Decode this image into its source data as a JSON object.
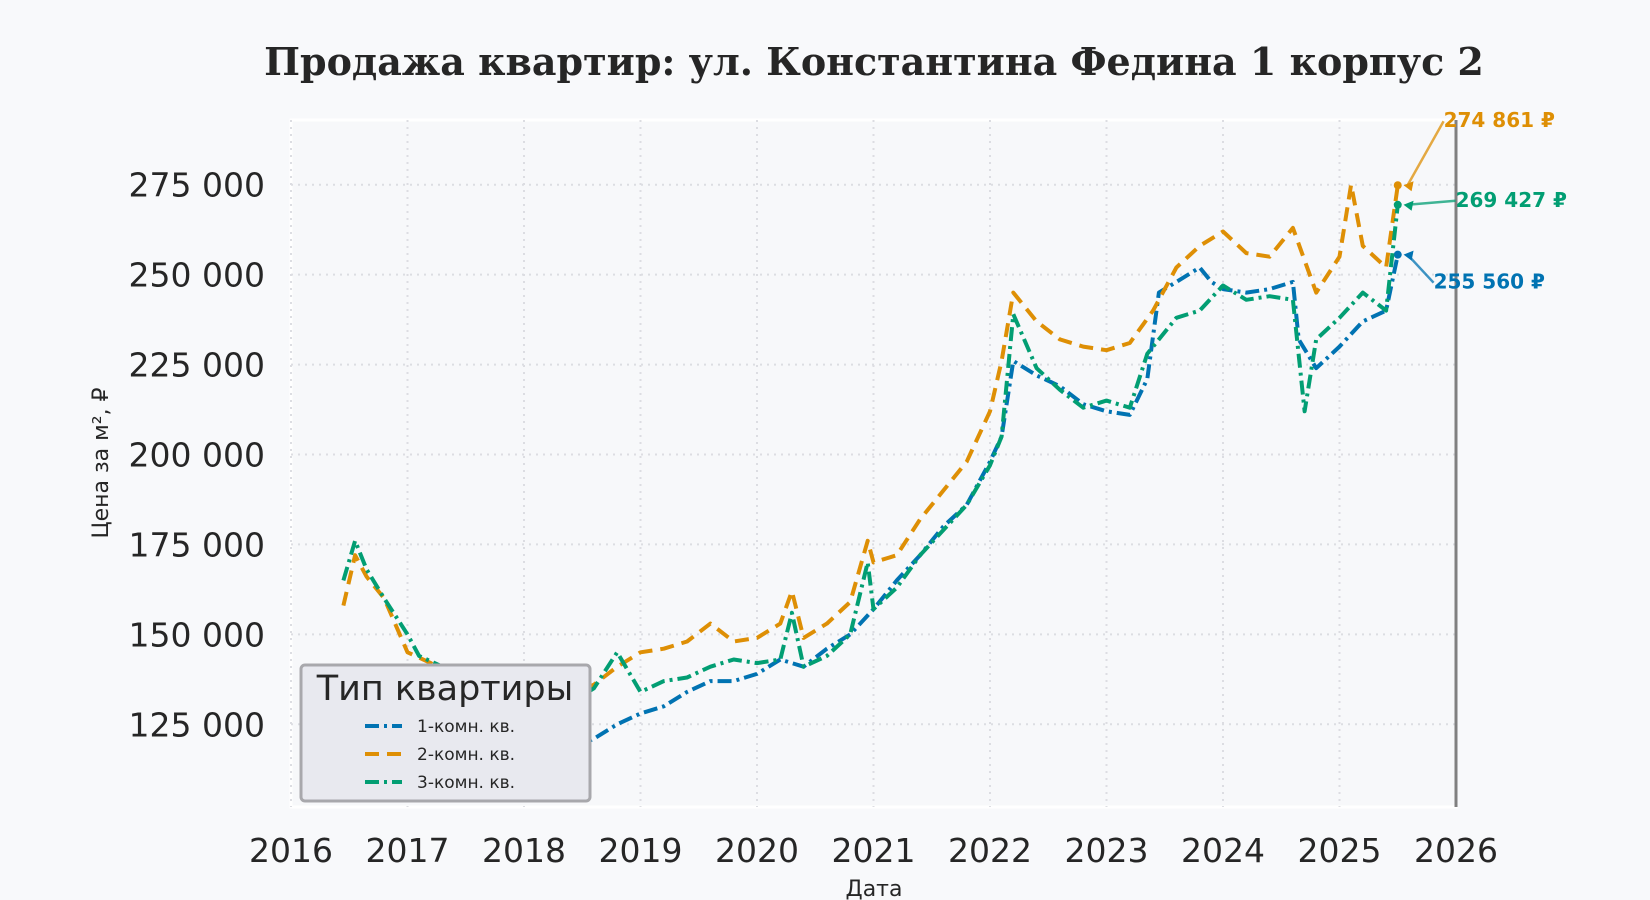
{
  "chart_data": {
    "type": "line",
    "title": "Продажа квартир: ул. Константина Федина 1 корпус 2",
    "xlabel": "Дата",
    "ylabel": "Цена за м², ₽",
    "xlim": [
      2016.0,
      2026.0
    ],
    "ylim": [
      102000,
      293000
    ],
    "x_ticks": [
      "2016",
      "2017",
      "2018",
      "2019",
      "2020",
      "2021",
      "2022",
      "2023",
      "2024",
      "2025",
      "2026"
    ],
    "y_ticks": [
      "125 000",
      "150 000",
      "175 000",
      "200 000",
      "225 000",
      "250 000",
      "275 000"
    ],
    "y_tick_values": [
      125000,
      150000,
      175000,
      200000,
      225000,
      250000,
      275000
    ],
    "grid": true,
    "legend": {
      "title": "Тип квартиры",
      "position": "bottom-left"
    },
    "current_date_line": 2026.0,
    "series": [
      {
        "name": "1-комн. кв.",
        "color": "#0173b2",
        "style": "dashdot",
        "x": [
          2018.2,
          2018.4,
          2018.6,
          2018.8,
          2019.0,
          2019.2,
          2019.4,
          2019.6,
          2019.8,
          2020.0,
          2020.2,
          2020.4,
          2020.6,
          2020.8,
          2021.0,
          2021.2,
          2021.4,
          2021.6,
          2021.8,
          2022.0,
          2022.1,
          2022.2,
          2022.4,
          2022.6,
          2022.8,
          2023.0,
          2023.2,
          2023.35,
          2023.45,
          2023.6,
          2023.8,
          2023.9,
          2024.0,
          2024.2,
          2024.4,
          2024.6,
          2024.65,
          2024.8,
          2025.0,
          2025.2,
          2025.4,
          2025.5
        ],
        "y": [
          115000,
          118000,
          121000,
          125000,
          128000,
          130000,
          134000,
          137000,
          137000,
          139000,
          143000,
          141000,
          146000,
          150000,
          157000,
          165000,
          172000,
          180000,
          186000,
          198000,
          205000,
          226000,
          222000,
          219000,
          214000,
          212000,
          211000,
          221000,
          245000,
          248000,
          252000,
          248000,
          246000,
          245000,
          246000,
          248000,
          232000,
          224000,
          230000,
          237000,
          240000,
          255560
        ]
      },
      {
        "name": "2-комн. кв.",
        "color": "#de8f05",
        "style": "dashed",
        "x": [
          2016.45,
          2016.55,
          2016.65,
          2016.8,
          2017.0,
          2017.2,
          2017.4,
          2017.6,
          2017.8,
          2018.0,
          2018.2,
          2018.4,
          2018.6,
          2018.8,
          2019.0,
          2019.2,
          2019.4,
          2019.6,
          2019.8,
          2020.0,
          2020.2,
          2020.3,
          2020.4,
          2020.6,
          2020.8,
          2020.95,
          2021.0,
          2021.2,
          2021.4,
          2021.6,
          2021.8,
          2022.0,
          2022.1,
          2022.2,
          2022.4,
          2022.6,
          2022.8,
          2023.0,
          2023.2,
          2023.4,
          2023.6,
          2023.8,
          2024.0,
          2024.2,
          2024.4,
          2024.6,
          2024.8,
          2025.0,
          2025.1,
          2025.2,
          2025.4,
          2025.5
        ],
        "y": [
          158000,
          172000,
          166000,
          160000,
          145000,
          142000,
          138000,
          136000,
          133000,
          132000,
          131000,
          133000,
          136000,
          141000,
          145000,
          146000,
          148000,
          153000,
          148000,
          149000,
          153000,
          162000,
          149000,
          153000,
          159000,
          176000,
          170000,
          172000,
          182000,
          190000,
          198000,
          212000,
          226000,
          245000,
          237000,
          232000,
          230000,
          229000,
          231000,
          240000,
          252000,
          258000,
          262000,
          256000,
          255000,
          263000,
          245000,
          255000,
          275000,
          258000,
          252000,
          274861
        ]
      },
      {
        "name": "3-комн. кв.",
        "color": "#029e73",
        "style": "dashdot",
        "x": [
          2016.45,
          2016.55,
          2016.65,
          2016.8,
          2017.0,
          2017.1,
          2017.3,
          2017.6,
          2017.8,
          2018.0,
          2018.2,
          2018.5,
          2018.6,
          2018.8,
          2019.0,
          2019.2,
          2019.4,
          2019.6,
          2019.8,
          2020.0,
          2020.2,
          2020.3,
          2020.4,
          2020.6,
          2020.8,
          2020.95,
          2021.0,
          2021.2,
          2021.4,
          2021.6,
          2021.8,
          2022.0,
          2022.1,
          2022.2,
          2022.4,
          2022.6,
          2022.8,
          2023.0,
          2023.2,
          2023.35,
          2023.45,
          2023.6,
          2023.8,
          2024.0,
          2024.2,
          2024.4,
          2024.6,
          2024.7,
          2024.8,
          2025.0,
          2025.2,
          2025.4,
          2025.5
        ],
        "y": [
          165000,
          176000,
          168000,
          160000,
          150000,
          144000,
          141000,
          138000,
          136000,
          134000,
          132000,
          133000,
          135000,
          145000,
          134000,
          137000,
          138000,
          141000,
          143000,
          142000,
          143000,
          156000,
          141000,
          144000,
          150000,
          170000,
          157000,
          163000,
          172000,
          179000,
          186000,
          197000,
          205000,
          239000,
          224000,
          218000,
          213000,
          215000,
          213000,
          228000,
          232000,
          238000,
          240000,
          247000,
          243000,
          244000,
          243000,
          212000,
          232000,
          238000,
          245000,
          240000,
          269427
        ]
      }
    ],
    "annotations": [
      {
        "text": "274 861 ₽",
        "series": "2-комн. кв.",
        "x": 2025.55,
        "y": 274861
      },
      {
        "text": "269 427 ₽",
        "series": "3-комн. кв.",
        "x": 2025.55,
        "y": 269427
      },
      {
        "text": "255 560 ₽",
        "series": "1-комн. кв.",
        "x": 2025.55,
        "y": 255560
      }
    ]
  }
}
